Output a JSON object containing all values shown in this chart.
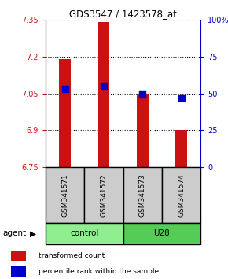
{
  "title": "GDS3547 / 1423578_at",
  "samples": [
    "GSM341571",
    "GSM341572",
    "GSM341573",
    "GSM341574"
  ],
  "red_values": [
    7.19,
    7.34,
    7.05,
    6.9
  ],
  "blue_percentiles": [
    53,
    55,
    50,
    47
  ],
  "y_min": 6.75,
  "y_max": 7.35,
  "y_ticks_left": [
    6.75,
    6.9,
    7.05,
    7.2,
    7.35
  ],
  "y_ticks_right": [
    0,
    25,
    50,
    75,
    100
  ],
  "y_ticks_right_labels": [
    "0",
    "25",
    "50",
    "75",
    "100%"
  ],
  "groups": [
    {
      "label": "control",
      "samples": [
        0,
        1
      ],
      "color": "#90ee90"
    },
    {
      "label": "U28",
      "samples": [
        2,
        3
      ],
      "color": "#55cc55"
    }
  ],
  "bar_color": "#cc1111",
  "dot_color": "#0000cc",
  "bar_width": 0.3,
  "dot_size": 35,
  "gsm_box_color": "#cccccc",
  "legend_red_label": "transformed count",
  "legend_blue_label": "percentile rank within the sample",
  "agent_label": "agent"
}
